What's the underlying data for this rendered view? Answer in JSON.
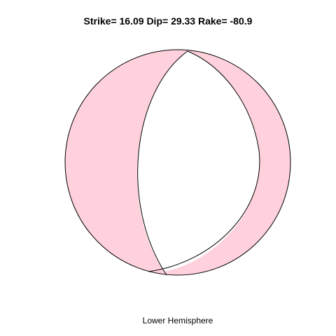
{
  "title": "Strike= 16.09 Dip= 29.33 Rake= -80.9",
  "footer": "Lower Hemisphere",
  "colors": {
    "compression_fill": "#ffd1dc",
    "dilatation_fill": "#ffffff",
    "stroke": "#000000"
  },
  "mechanism": {
    "strike": 16.09,
    "dip": 29.33,
    "rake": -80.9,
    "projection": "lower-hemisphere"
  }
}
